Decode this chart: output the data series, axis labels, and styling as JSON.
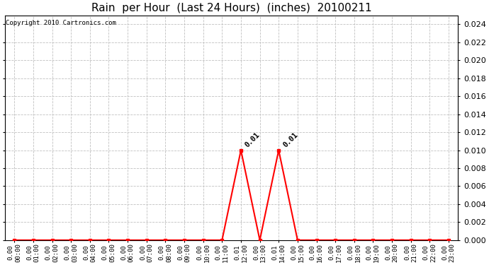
{
  "title": "Rain  per Hour  (Last 24 Hours)  (inches)  20100211",
  "copyright_text": "Copyright 2010 Cartronics.com",
  "hours": [
    "00:00",
    "01:00",
    "02:00",
    "03:00",
    "04:00",
    "05:00",
    "06:00",
    "07:00",
    "08:00",
    "09:00",
    "10:00",
    "11:00",
    "12:00",
    "13:00",
    "14:00",
    "15:00",
    "16:00",
    "17:00",
    "18:00",
    "19:00",
    "20:00",
    "21:00",
    "22:00",
    "23:00"
  ],
  "values": [
    0.0,
    0.0,
    0.0,
    0.0,
    0.0,
    0.0,
    0.0,
    0.0,
    0.0,
    0.0,
    0.0,
    0.0,
    0.01,
    0.0,
    0.01,
    0.0,
    0.0,
    0.0,
    0.0,
    0.0,
    0.0,
    0.0,
    0.0,
    0.0
  ],
  "line_color": "#ff0000",
  "bg_color": "#ffffff",
  "grid_color": "#c0c0c0",
  "ylim": [
    0.0,
    0.025
  ],
  "yticks": [
    0.0,
    0.002,
    0.004,
    0.006,
    0.008,
    0.01,
    0.012,
    0.014,
    0.016,
    0.018,
    0.02,
    0.022,
    0.024
  ],
  "annotation_color": "#000000",
  "title_fontsize": 11,
  "tick_fontsize": 6.5,
  "copyright_fontsize": 6.5,
  "ytick_fontsize": 8
}
